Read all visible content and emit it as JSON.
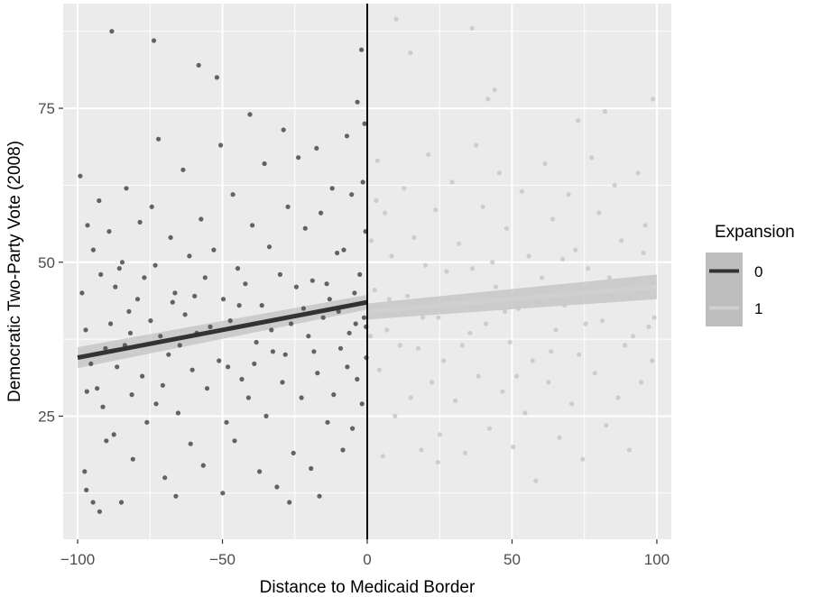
{
  "chart_data": {
    "type": "scatter",
    "title": "",
    "xlabel": "Distance to Medicaid Border",
    "ylabel": "Democratic Two-Party Vote (2008)",
    "xlim": [
      -105,
      105
    ],
    "ylim": [
      5,
      92
    ],
    "x_ticks": [
      -100,
      -50,
      0,
      50,
      100
    ],
    "x_tick_labels": [
      "−100",
      "−50",
      "0",
      "50",
      "100"
    ],
    "y_ticks": [
      25,
      50,
      75
    ],
    "y_tick_labels": [
      "25",
      "50",
      "75"
    ],
    "grid": true,
    "cutoff_line_x": 0,
    "legend": {
      "title": "Expansion",
      "position": "right",
      "entries": [
        {
          "label": "0",
          "color": "#333333"
        },
        {
          "label": "1",
          "color": "#d0d0d0"
        }
      ]
    },
    "series": [
      {
        "name": "0",
        "color": "#333333",
        "point_color": "#4a4a4a",
        "fit": {
          "x": [
            -100,
            0
          ],
          "y": [
            34.5,
            43.5
          ],
          "band": [
            1.7,
            1.2
          ]
        },
        "points": [
          [
            -99.1,
            64.0
          ],
          [
            -96.6,
            56.0
          ],
          [
            -98.5,
            45.0
          ],
          [
            -97.2,
            39.0
          ],
          [
            -95.4,
            33.5
          ],
          [
            -96.8,
            29.0
          ],
          [
            -97.6,
            16.0
          ],
          [
            -97.0,
            13.0
          ],
          [
            -94.7,
            11.0
          ],
          [
            -92.6,
            60.0
          ],
          [
            -92.0,
            48.0
          ],
          [
            -93.3,
            29.5
          ],
          [
            -91.3,
            26.5
          ],
          [
            -90.1,
            21.0
          ],
          [
            -92.4,
            9.5
          ],
          [
            -89.1,
            55.0
          ],
          [
            -88.2,
            87.5
          ],
          [
            -87.0,
            46.0
          ],
          [
            -88.6,
            40.0
          ],
          [
            -86.4,
            33.0
          ],
          [
            -87.5,
            22.0
          ],
          [
            -84.9,
            11.0
          ],
          [
            -83.2,
            62.0
          ],
          [
            -84.6,
            50.0
          ],
          [
            -82.3,
            42.0
          ],
          [
            -83.7,
            36.5
          ],
          [
            -81.3,
            28.5
          ],
          [
            -80.9,
            18.0
          ],
          [
            -78.5,
            56.5
          ],
          [
            -79.3,
            44.0
          ],
          [
            -77.7,
            31.5
          ],
          [
            -76.1,
            24.0
          ],
          [
            -73.7,
            86.0
          ],
          [
            -72.1,
            70.0
          ],
          [
            -74.4,
            59.0
          ],
          [
            -73.2,
            49.5
          ],
          [
            -71.4,
            38.0
          ],
          [
            -72.9,
            27.0
          ],
          [
            -69.9,
            15.0
          ],
          [
            -67.9,
            54.0
          ],
          [
            -66.4,
            45.0
          ],
          [
            -68.6,
            35.0
          ],
          [
            -65.3,
            25.5
          ],
          [
            -66.1,
            12.0
          ],
          [
            -63.6,
            65.0
          ],
          [
            -61.4,
            51.0
          ],
          [
            -62.9,
            41.5
          ],
          [
            -60.4,
            32.5
          ],
          [
            -61.0,
            20.5
          ],
          [
            -58.2,
            82.0
          ],
          [
            -57.4,
            57.0
          ],
          [
            -56.0,
            47.5
          ],
          [
            -58.9,
            38.5
          ],
          [
            -55.3,
            29.5
          ],
          [
            -56.6,
            17.0
          ],
          [
            -51.9,
            80.0
          ],
          [
            -50.6,
            69.0
          ],
          [
            -53.0,
            52.0
          ],
          [
            -49.7,
            44.0
          ],
          [
            -51.2,
            34.0
          ],
          [
            -48.6,
            24.0
          ],
          [
            -49.9,
            12.5
          ],
          [
            -46.4,
            61.0
          ],
          [
            -44.7,
            49.0
          ],
          [
            -47.3,
            40.5
          ],
          [
            -43.3,
            31.0
          ],
          [
            -45.8,
            21.0
          ],
          [
            -40.5,
            74.0
          ],
          [
            -39.7,
            56.0
          ],
          [
            -42.1,
            46.5
          ],
          [
            -38.3,
            37.0
          ],
          [
            -41.0,
            28.0
          ],
          [
            -37.2,
            16.0
          ],
          [
            -35.5,
            66.0
          ],
          [
            -33.8,
            52.5
          ],
          [
            -36.4,
            43.0
          ],
          [
            -32.6,
            35.5
          ],
          [
            -34.9,
            25.0
          ],
          [
            -31.2,
            13.5
          ],
          [
            -28.9,
            71.5
          ],
          [
            -27.4,
            59.0
          ],
          [
            -30.1,
            48.0
          ],
          [
            -26.3,
            40.0
          ],
          [
            -29.3,
            30.5
          ],
          [
            -25.5,
            19.0
          ],
          [
            -26.9,
            11.0
          ],
          [
            -23.8,
            67.0
          ],
          [
            -21.4,
            55.5
          ],
          [
            -24.5,
            46.0
          ],
          [
            -20.3,
            38.0
          ],
          [
            -22.7,
            28.0
          ],
          [
            -19.4,
            16.5
          ],
          [
            -17.5,
            68.5
          ],
          [
            -16.0,
            58.0
          ],
          [
            -18.9,
            47.0
          ],
          [
            -15.2,
            41.0
          ],
          [
            -17.2,
            32.0
          ],
          [
            -13.7,
            24.0
          ],
          [
            -16.5,
            12.0
          ],
          [
            -12.1,
            62.0
          ],
          [
            -10.4,
            51.5
          ],
          [
            -13.0,
            44.0
          ],
          [
            -9.2,
            36.0
          ],
          [
            -11.6,
            28.5
          ],
          [
            -8.4,
            19.5
          ],
          [
            -7.0,
            70.5
          ],
          [
            -5.4,
            61.0
          ],
          [
            -8.1,
            52.0
          ],
          [
            -4.4,
            45.0
          ],
          [
            -6.2,
            38.5
          ],
          [
            -3.5,
            31.0
          ],
          [
            -5.1,
            23.0
          ],
          [
            -2.0,
            84.5
          ],
          [
            -3.4,
            76.0
          ],
          [
            -0.9,
            72.5
          ],
          [
            -1.5,
            63.0
          ],
          [
            -0.6,
            55.0
          ],
          [
            -2.6,
            48.0
          ],
          [
            -1.1,
            41.0
          ],
          [
            -0.3,
            34.5
          ],
          [
            -1.8,
            27.0
          ],
          [
            -0.4,
            39.5
          ],
          [
            -94.6,
            52.0
          ],
          [
            -90.4,
            36.0
          ],
          [
            -85.6,
            49.0
          ],
          [
            -81.8,
            38.5
          ],
          [
            -77.0,
            47.5
          ],
          [
            -74.8,
            40.5
          ],
          [
            -70.6,
            30.0
          ],
          [
            -67.2,
            43.5
          ],
          [
            -64.7,
            36.5
          ],
          [
            -59.6,
            44.5
          ],
          [
            -54.2,
            39.5
          ],
          [
            -48.1,
            33.0
          ],
          [
            -44.2,
            43.0
          ],
          [
            -39.0,
            33.5
          ],
          [
            -33.1,
            39.0
          ],
          [
            -28.3,
            35.0
          ],
          [
            -22.0,
            42.5
          ],
          [
            -18.4,
            35.5
          ],
          [
            -14.0,
            46.5
          ],
          [
            -9.9,
            42.0
          ],
          [
            -6.9,
            33.0
          ],
          [
            -4.0,
            40.0
          ]
        ]
      },
      {
        "name": "1",
        "color": "#d0d0d0",
        "point_color": "#c8c8c8",
        "fit": {
          "x": [
            0,
            100
          ],
          "y": [
            42.0,
            46.0
          ],
          "band": [
            1.3,
            2.0
          ]
        },
        "points": [
          [
            10.0,
            89.5
          ],
          [
            14.9,
            84.0
          ],
          [
            36.2,
            88.0
          ],
          [
            44.0,
            78.0
          ],
          [
            41.7,
            76.5
          ],
          [
            72.8,
            73.0
          ],
          [
            82.1,
            74.5
          ],
          [
            98.6,
            76.5
          ],
          [
            3.5,
            66.5
          ],
          [
            6.1,
            58.0
          ],
          [
            8.4,
            51.0
          ],
          [
            2.6,
            45.5
          ],
          [
            6.8,
            39.0
          ],
          [
            4.2,
            32.5
          ],
          [
            9.6,
            25.0
          ],
          [
            5.4,
            18.5
          ],
          [
            12.7,
            62.0
          ],
          [
            16.2,
            54.0
          ],
          [
            13.9,
            44.5
          ],
          [
            17.6,
            36.0
          ],
          [
            15.0,
            28.0
          ],
          [
            18.7,
            19.5
          ],
          [
            21.1,
            67.5
          ],
          [
            23.6,
            58.5
          ],
          [
            20.1,
            49.5
          ],
          [
            24.6,
            41.0
          ],
          [
            22.3,
            30.5
          ],
          [
            25.1,
            22.0
          ],
          [
            24.4,
            17.5
          ],
          [
            29.3,
            63.0
          ],
          [
            31.7,
            53.0
          ],
          [
            28.2,
            44.0
          ],
          [
            32.8,
            36.5
          ],
          [
            30.4,
            27.5
          ],
          [
            33.8,
            19.0
          ],
          [
            37.6,
            69.0
          ],
          [
            39.9,
            59.0
          ],
          [
            36.3,
            49.0
          ],
          [
            41.0,
            40.0
          ],
          [
            38.4,
            31.5
          ],
          [
            42.2,
            23.0
          ],
          [
            45.6,
            64.5
          ],
          [
            48.1,
            55.5
          ],
          [
            44.4,
            46.0
          ],
          [
            49.3,
            37.0
          ],
          [
            46.7,
            29.0
          ],
          [
            50.4,
            20.0
          ],
          [
            53.4,
            61.5
          ],
          [
            55.8,
            51.0
          ],
          [
            52.2,
            42.5
          ],
          [
            57.1,
            34.0
          ],
          [
            54.5,
            25.5
          ],
          [
            58.2,
            14.5
          ],
          [
            61.4,
            66.0
          ],
          [
            64.0,
            57.0
          ],
          [
            60.3,
            47.5
          ],
          [
            65.1,
            39.0
          ],
          [
            62.6,
            30.5
          ],
          [
            66.4,
            21.5
          ],
          [
            69.5,
            61.0
          ],
          [
            71.9,
            52.0
          ],
          [
            68.1,
            43.0
          ],
          [
            73.1,
            35.0
          ],
          [
            70.6,
            27.0
          ],
          [
            74.4,
            18.0
          ],
          [
            77.5,
            67.0
          ],
          [
            80.0,
            58.0
          ],
          [
            76.2,
            49.0
          ],
          [
            81.2,
            40.5
          ],
          [
            78.6,
            32.0
          ],
          [
            82.5,
            23.5
          ],
          [
            85.4,
            62.5
          ],
          [
            87.8,
            53.5
          ],
          [
            84.2,
            44.5
          ],
          [
            89.0,
            36.5
          ],
          [
            86.6,
            28.0
          ],
          [
            90.5,
            19.5
          ],
          [
            93.5,
            64.5
          ],
          [
            96.0,
            56.0
          ],
          [
            92.1,
            47.0
          ],
          [
            97.2,
            39.5
          ],
          [
            94.6,
            30.5
          ],
          [
            98.9,
            46.5
          ],
          [
            99.1,
            41.0
          ],
          [
            98.4,
            34.0
          ],
          [
            1.4,
            53.5
          ],
          [
            1.1,
            38.0
          ],
          [
            3.1,
            60.0
          ],
          [
            11.3,
            36.5
          ],
          [
            19.2,
            41.0
          ],
          [
            27.4,
            48.5
          ],
          [
            35.5,
            38.5
          ],
          [
            43.2,
            50.0
          ],
          [
            51.6,
            31.5
          ],
          [
            59.3,
            43.5
          ],
          [
            67.5,
            50.5
          ],
          [
            75.4,
            40.0
          ],
          [
            83.6,
            47.5
          ],
          [
            91.8,
            38.0
          ],
          [
            95.4,
            51.5
          ],
          [
            7.6,
            44.0
          ],
          [
            26.4,
            34.0
          ],
          [
            47.5,
            42.0
          ],
          [
            63.5,
            35.5
          ]
        ]
      }
    ]
  }
}
